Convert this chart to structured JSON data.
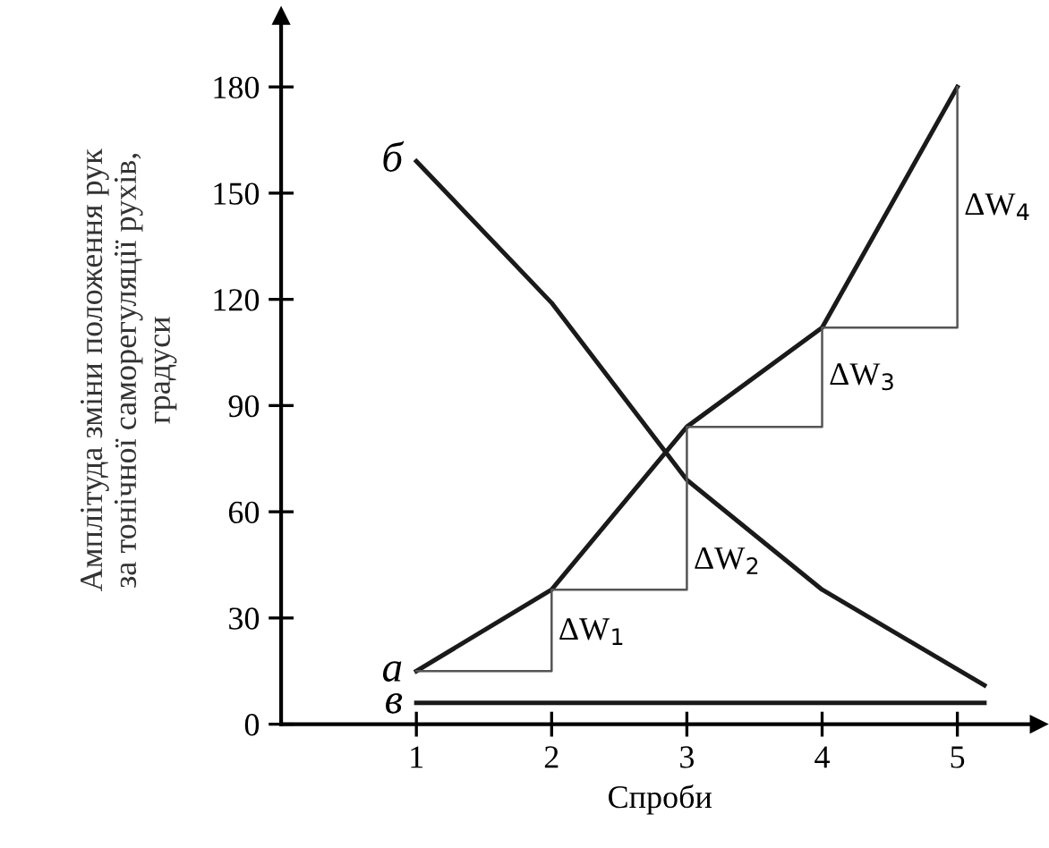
{
  "chart_data": {
    "type": "line",
    "xlabel": "Спроби",
    "ylabel": "Амплітуда зміни положення рук\nза тонічної саморегуляції рухів,\nградуси",
    "series": [
      {
        "name": "а",
        "color": "#1a1a1a",
        "x": [
          1,
          2,
          3,
          4,
          5
        ],
        "values": [
          15,
          38,
          84,
          112,
          180
        ]
      },
      {
        "name": "б",
        "color": "#1a1a1a",
        "x": [
          1,
          2,
          3,
          4,
          5.2
        ],
        "values": [
          159,
          119,
          69,
          38,
          11
        ]
      },
      {
        "name": "в",
        "color": "#1a1a1a",
        "x": [
          1,
          5.2
        ],
        "values": [
          6,
          6
        ]
      },
      {
        "type": "step",
        "color": "#555555",
        "x": [
          1,
          2,
          3,
          4,
          5
        ],
        "values": [
          15,
          38,
          84,
          112,
          180
        ]
      }
    ],
    "annotations": [
      {
        "text": "ΔW$_{1}$",
        "x": 2,
        "y": 26
      },
      {
        "text": "ΔW$_{2}$",
        "x": 3,
        "y": 46
      },
      {
        "text": "ΔW$_{3}$",
        "x": 4,
        "y": 98
      },
      {
        "text": "ΔW$_{4}$",
        "x": 5,
        "y": 146
      }
    ],
    "xlim": [
      0,
      5.6
    ],
    "ylim": [
      0,
      200
    ],
    "xticks": [
      1,
      2,
      3,
      4,
      5
    ],
    "yticks": [
      0,
      30,
      60,
      90,
      120,
      150,
      180
    ],
    "grid": false,
    "legend": false,
    "marker": "none",
    "line_style": "solid"
  }
}
